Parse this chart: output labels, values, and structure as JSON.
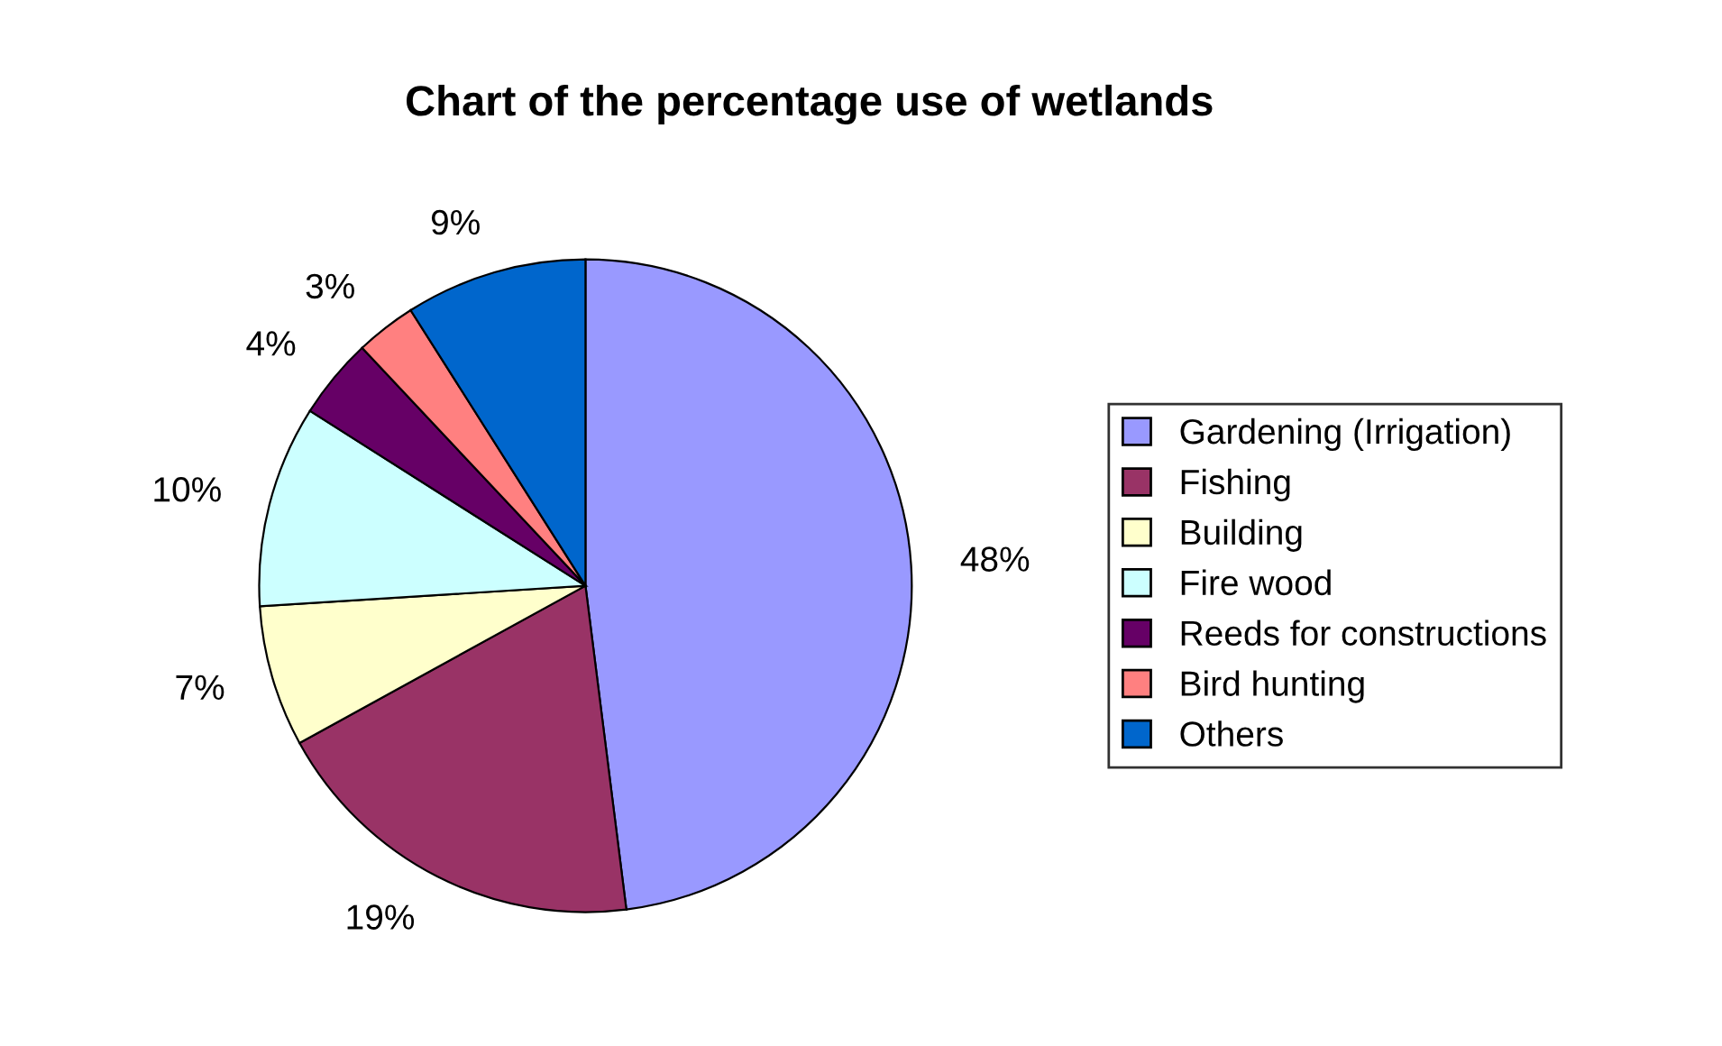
{
  "chart_data": {
    "type": "pie",
    "title": "Chart of the percentage use of wetlands",
    "categories": [
      "Gardening (Irrigation)",
      "Fishing",
      "Building",
      "Fire wood",
      "Reeds for constructions",
      "Bird hunting",
      "Others"
    ],
    "values": [
      48,
      19,
      7,
      10,
      4,
      3,
      9
    ],
    "value_labels": [
      "48%",
      "19%",
      "7%",
      "10%",
      "4%",
      "3%",
      "9%"
    ],
    "colors": [
      "#9999ff",
      "#993366",
      "#ffffcc",
      "#ccffff",
      "#660066",
      "#ff8080",
      "#0066cc"
    ],
    "legend": "right"
  }
}
